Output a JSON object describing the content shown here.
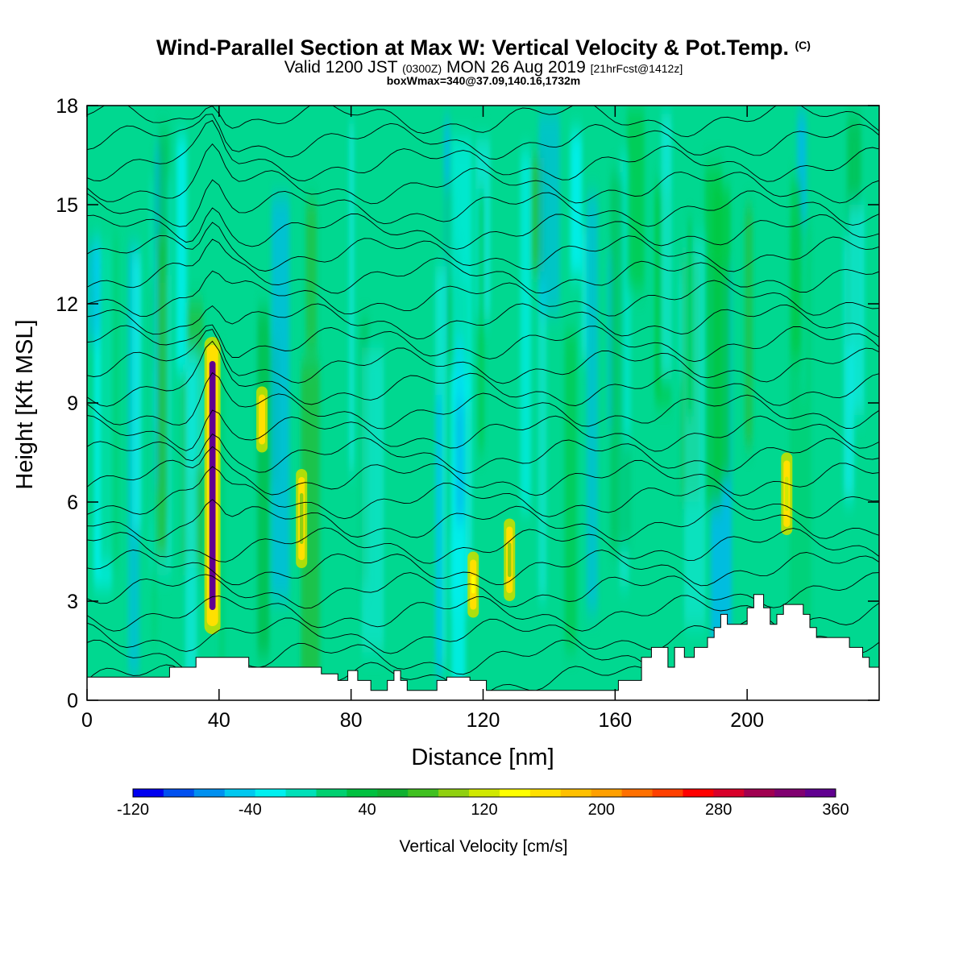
{
  "title": {
    "main": "Wind-Parallel Section at Max W: Vertical Velocity & Pot.Temp.",
    "copyright": "(C)",
    "valid_prefix": "Valid 1200 JST",
    "valid_utc": "(0300Z)",
    "valid_date": "MON 26 Aug 2019",
    "forecast": "[21hrFcst@1412z]",
    "box_info": "boxWmax=340@37.09,140.16,1732m"
  },
  "colorbar": {
    "title": "Vertical Velocity [cm/s]",
    "labels": [
      "-120",
      "-40",
      "40",
      "120",
      "200",
      "280",
      "360"
    ],
    "colors": [
      "#0000f0",
      "#0050f0",
      "#0090f0",
      "#00c8f0",
      "#00f0f0",
      "#00e0b8",
      "#00d070",
      "#00c040",
      "#10b030",
      "#40c020",
      "#90d010",
      "#d0e800",
      "#ffff00",
      "#ffe000",
      "#ffc000",
      "#ffa000",
      "#ff7000",
      "#ff4000",
      "#ff0000",
      "#d8002a",
      "#a00050",
      "#800070",
      "#600090"
    ]
  },
  "chart_data": {
    "type": "heatmap",
    "xlabel": "Distance [nm]",
    "ylabel": "Height [Kft MSL]",
    "xlim": [
      0,
      240
    ],
    "ylim": [
      0,
      18
    ],
    "x_ticks": [
      "0",
      "40",
      "80",
      "120",
      "160",
      "200"
    ],
    "y_ticks": [
      "0",
      "3",
      "6",
      "9",
      "12",
      "15",
      "18"
    ],
    "field": "Vertical Velocity",
    "field_units": "cm/s",
    "field_range": [
      -120,
      360
    ],
    "contour_field": "Potential Temperature",
    "background_color": "#00d890",
    "updrafts": [
      {
        "x": 38,
        "z_bottom": 2.0,
        "z_top": 11.0,
        "wmax": 340
      },
      {
        "x": 53,
        "z_bottom": 7.5,
        "z_top": 9.5,
        "wmax": 140
      },
      {
        "x": 65,
        "z_bottom": 4.0,
        "z_top": 7.0,
        "wmax": 90
      },
      {
        "x": 117,
        "z_bottom": 2.5,
        "z_top": 4.5,
        "wmax": 130
      },
      {
        "x": 128,
        "z_bottom": 3.0,
        "z_top": 5.5,
        "wmax": 90
      },
      {
        "x": 212,
        "z_bottom": 5.0,
        "z_top": 7.5,
        "wmax": 110
      }
    ],
    "terrain": [
      [
        0,
        0.7
      ],
      [
        25,
        0.7
      ],
      [
        25,
        1.0
      ],
      [
        33,
        1.0
      ],
      [
        33,
        1.3
      ],
      [
        49,
        1.3
      ],
      [
        49,
        1.0
      ],
      [
        71,
        1.0
      ],
      [
        71,
        0.8
      ],
      [
        76,
        0.8
      ],
      [
        76,
        0.6
      ],
      [
        79,
        0.6
      ],
      [
        79,
        0.9
      ],
      [
        82,
        0.9
      ],
      [
        82,
        0.6
      ],
      [
        86,
        0.6
      ],
      [
        86,
        0.3
      ],
      [
        91,
        0.3
      ],
      [
        91,
        0.6
      ],
      [
        93,
        0.6
      ],
      [
        93,
        0.9
      ],
      [
        95,
        0.9
      ],
      [
        95,
        0.6
      ],
      [
        97,
        0.6
      ],
      [
        97,
        0.3
      ],
      [
        106,
        0.3
      ],
      [
        106,
        0.6
      ],
      [
        109,
        0.6
      ],
      [
        109,
        0.7
      ],
      [
        116,
        0.7
      ],
      [
        116,
        0.6
      ],
      [
        121,
        0.6
      ],
      [
        121,
        0.3
      ],
      [
        161,
        0.3
      ],
      [
        161,
        0.6
      ],
      [
        168,
        0.6
      ],
      [
        168,
        1.3
      ],
      [
        171,
        1.3
      ],
      [
        171,
        1.6
      ],
      [
        176,
        1.6
      ],
      [
        176,
        1.0
      ],
      [
        178,
        1.0
      ],
      [
        178,
        1.6
      ],
      [
        181,
        1.6
      ],
      [
        181,
        1.3
      ],
      [
        184,
        1.3
      ],
      [
        184,
        1.6
      ],
      [
        188,
        1.6
      ],
      [
        188,
        1.9
      ],
      [
        190,
        1.9
      ],
      [
        190,
        2.2
      ],
      [
        192,
        2.2
      ],
      [
        192,
        2.6
      ],
      [
        194,
        2.6
      ],
      [
        194,
        2.3
      ],
      [
        200,
        2.3
      ],
      [
        200,
        2.8
      ],
      [
        202,
        2.8
      ],
      [
        202,
        3.2
      ],
      [
        205,
        3.2
      ],
      [
        205,
        2.8
      ],
      [
        207,
        2.8
      ],
      [
        207,
        2.3
      ],
      [
        209,
        2.3
      ],
      [
        209,
        2.6
      ],
      [
        211,
        2.6
      ],
      [
        211,
        2.9
      ],
      [
        217,
        2.9
      ],
      [
        217,
        2.6
      ],
      [
        219,
        2.6
      ],
      [
        219,
        2.2
      ],
      [
        221,
        2.2
      ],
      [
        221,
        1.9
      ],
      [
        231,
        1.9
      ],
      [
        231,
        1.6
      ],
      [
        235,
        1.6
      ],
      [
        235,
        1.3
      ],
      [
        237,
        1.3
      ],
      [
        237,
        1.0
      ],
      [
        240,
        1.0
      ],
      [
        240,
        0.7
      ]
    ]
  }
}
